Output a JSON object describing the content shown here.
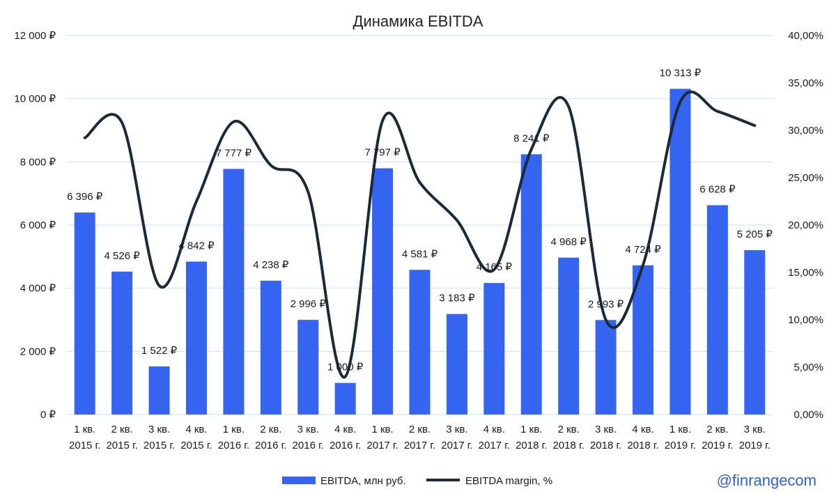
{
  "chart_data": {
    "type": "bar",
    "title": "Динамика EBITDA",
    "categories": [
      [
        "1 кв.",
        "2015 г."
      ],
      [
        "2 кв.",
        "2015 г."
      ],
      [
        "3 кв.",
        "2015 г."
      ],
      [
        "4 кв.",
        "2015 г."
      ],
      [
        "1 кв.",
        "2016 г."
      ],
      [
        "2 кв.",
        "2016 г."
      ],
      [
        "3 кв.",
        "2016 г."
      ],
      [
        "4 кв.",
        "2016 г."
      ],
      [
        "1 кв.",
        "2017 г."
      ],
      [
        "2 кв.",
        "2017 г."
      ],
      [
        "3 кв.",
        "2017 г."
      ],
      [
        "4 кв.",
        "2017 г."
      ],
      [
        "1 кв.",
        "2018 г."
      ],
      [
        "2 кв.",
        "2018 г."
      ],
      [
        "3 кв.",
        "2018 г."
      ],
      [
        "4 кв.",
        "2018 г."
      ],
      [
        "1 кв.",
        "2019 г."
      ],
      [
        "2 кв.",
        "2019 г."
      ],
      [
        "3 кв.",
        "2019 г."
      ]
    ],
    "series": [
      {
        "name": "EBITDA, млн руб.",
        "type": "bar",
        "axis": "left",
        "color": "#3464f0",
        "values": [
          6396,
          4526,
          1522,
          4842,
          7777,
          4238,
          2996,
          1000,
          7797,
          4581,
          3183,
          4165,
          8241,
          4968,
          2993,
          4724,
          10313,
          6628,
          5205
        ],
        "labels": [
          "6 396 ₽",
          "4 526 ₽",
          "1 522 ₽",
          "4 842 ₽",
          "7 777 ₽",
          "4 238 ₽",
          "2 996 ₽",
          "1 000 ₽",
          "7 797 ₽",
          "4 581 ₽",
          "3 183 ₽",
          "4 165 ₽",
          "8 241 ₽",
          "4 968 ₽",
          "2 993 ₽",
          "4 724 ₽",
          "10 313 ₽",
          "6 628 ₽",
          "5 205 ₽"
        ]
      },
      {
        "name": "EBITDA margin, %",
        "type": "line",
        "axis": "right",
        "color": "#1a2a3a",
        "values": [
          29.2,
          30.8,
          13.6,
          22.5,
          30.9,
          26.3,
          23.5,
          4.0,
          31.0,
          24.5,
          20.5,
          15.3,
          28.0,
          32.5,
          10.0,
          15.8,
          33.0,
          32.0,
          30.5
        ]
      }
    ],
    "y_left": {
      "min": 0,
      "max": 12000,
      "ticks": [
        "0 ₽",
        "2 000 ₽",
        "4 000 ₽",
        "6 000 ₽",
        "8 000 ₽",
        "10 000 ₽",
        "12 000 ₽"
      ]
    },
    "y_right": {
      "min": 0,
      "max": 40,
      "ticks": [
        "0,00%",
        "5,00%",
        "10,00%",
        "15,00%",
        "20,00%",
        "25,00%",
        "30,00%",
        "35,00%",
        "40,00%"
      ]
    },
    "grid": true,
    "legend_position": "bottom-center"
  },
  "watermark": "@finrangecom"
}
